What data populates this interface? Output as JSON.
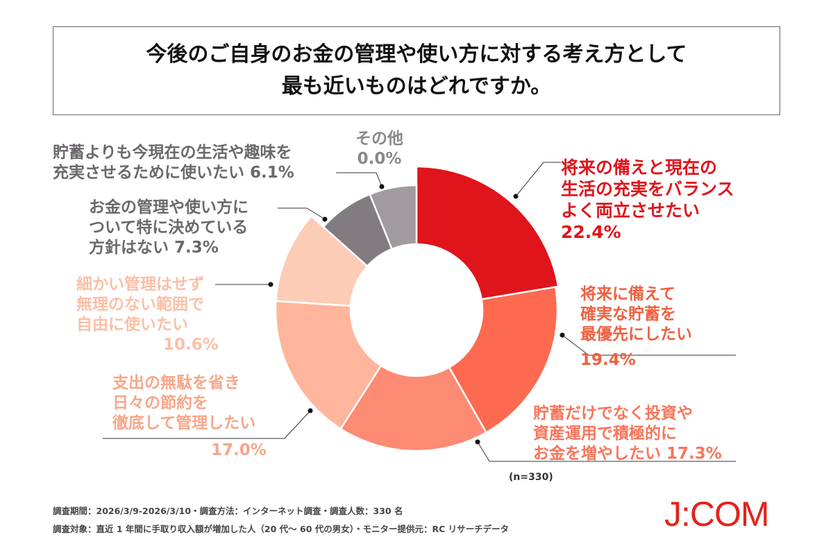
{
  "title": {
    "line1": "今後のご自身のお金の管理や使い方に対する考え方として",
    "line2": "最も近いものはどれですか。"
  },
  "chart_data": {
    "type": "pie",
    "variant": "donut",
    "sample_size": "(n=330)",
    "slices": [
      {
        "label": "将来の備えと現在の生活の充実をバランスよく両立させたい",
        "value": 22.4,
        "color": "#e0141b"
      },
      {
        "label": "将来に備えて確実な貯蓄を最優先にしたい",
        "value": 19.4,
        "color": "#fd6a4f"
      },
      {
        "label": "貯蓄だけでなく投資や資産運用で積極的にお金を増やしたい",
        "value": 17.3,
        "color": "#fd8a72"
      },
      {
        "label": "支出の無駄を省き日々の節約を徹底して管理したい",
        "value": 17.0,
        "color": "#feb59b"
      },
      {
        "label": "細かい管理はせず無理のない範囲で自由に使いたい",
        "value": 10.6,
        "color": "#fdccb6"
      },
      {
        "label": "お金の管理や使い方について特に決めている方針はない",
        "value": 7.3,
        "color": "#807c80"
      },
      {
        "label": "貯蓄よりも今現在の生活や趣味を充実させるために使いたい",
        "value": 6.1,
        "color": "#9f9b9f"
      },
      {
        "label": "その他",
        "value": 0.0,
        "color": "#cccccc"
      }
    ]
  },
  "labels": [
    {
      "lines": [
        "将来の備えと現在の",
        "生活の充実をバランス",
        "よく両立させたい"
      ],
      "pct": "22.4%"
    },
    {
      "lines": [
        "将来に備えて",
        "確実な貯蓄を",
        "最優先にしたい"
      ],
      "pct": "19.4%"
    },
    {
      "lines": [
        "貯蓄だけでなく投資や",
        "資産運用で積極的に",
        "お金を増やしたい  17.3%"
      ]
    },
    {
      "lines": [
        "支出の無駄を省き",
        "日々の節約を",
        "徹底して管理したい"
      ],
      "pct": "17.0%"
    },
    {
      "lines": [
        "細かい管理はせず",
        "無理のない範囲で",
        "自由に使いたい"
      ],
      "pct": "10.6%"
    },
    {
      "lines": [
        "お金の管理や使い方に",
        "ついて特に決めている",
        "方針はない  7.3%"
      ]
    },
    {
      "lines": [
        "貯蓄よりも今現在の生活や趣味を",
        "充実させるために使いたい  6.1%"
      ]
    },
    {
      "lines": [
        "その他",
        "0.0%"
      ]
    }
  ],
  "footer": {
    "line1": "調査期間：2026/3/9-2026/3/10・調査方法：インターネット調査・調査人数：330 名",
    "line2": "調査対象：直近 1 年間に手取り収入額が増加した人（20 代～ 60 代の男女）・モニター提供元：RC リサーチデータ"
  },
  "logo": "J:COM"
}
